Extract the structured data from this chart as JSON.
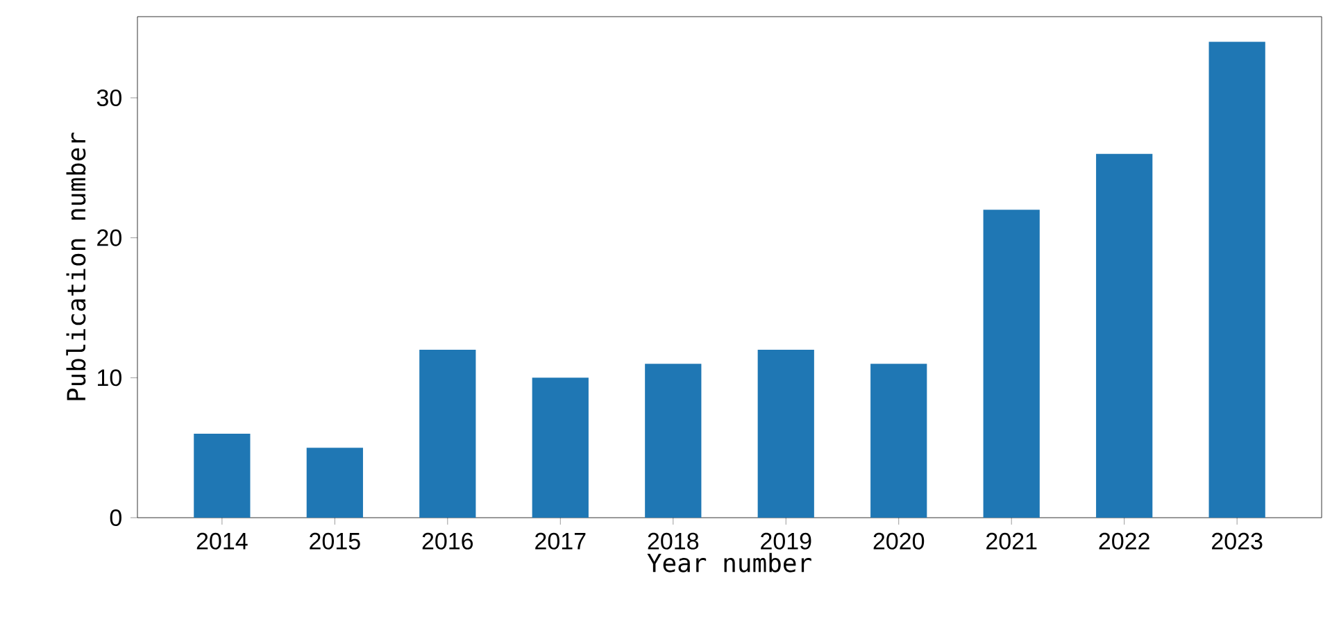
{
  "chart_data": {
    "type": "bar",
    "xlabel": "Year number",
    "ylabel": "Publication number",
    "categories": [
      "2014",
      "2015",
      "2016",
      "2017",
      "2018",
      "2019",
      "2020",
      "2021",
      "2022",
      "2023"
    ],
    "values": [
      6,
      5,
      12,
      10,
      11,
      12,
      11,
      22,
      26,
      34
    ],
    "color": "#1f77b4",
    "ylim": [
      0,
      35.8
    ],
    "yticks": [
      0,
      10,
      20,
      30
    ],
    "grid": false
  }
}
